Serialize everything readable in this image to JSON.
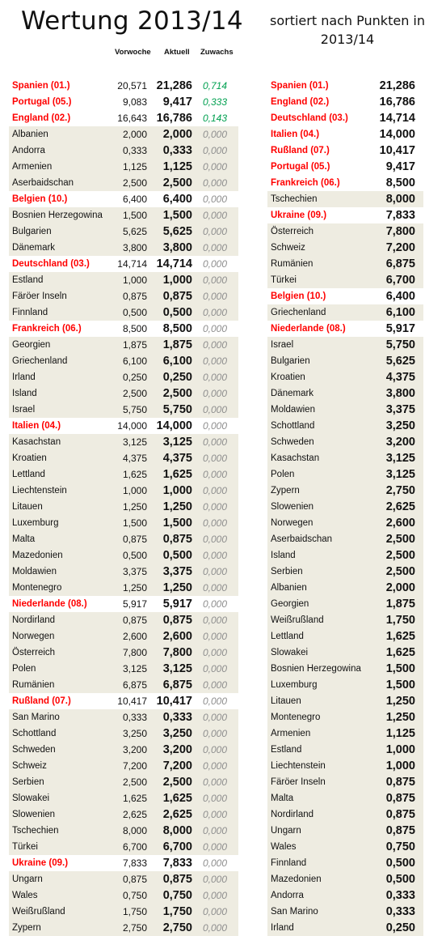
{
  "title": "Wertung 2013/14",
  "subtitle": "sortiert nach Punkten in 2013/14",
  "headers": {
    "prev": "Vorwoche",
    "curr": "Aktuell",
    "grow": "Zuwachs"
  },
  "left_rows": [
    {
      "name": "Spanien (01.)",
      "prev": "20,571",
      "curr": "21,286",
      "grow": "0,714",
      "hl": true,
      "pos": true
    },
    {
      "name": "Portugal (05.)",
      "prev": "9,083",
      "curr": "9,417",
      "grow": "0,333",
      "hl": true,
      "pos": true
    },
    {
      "name": "England (02.)",
      "prev": "16,643",
      "curr": "16,786",
      "grow": "0,143",
      "hl": true,
      "pos": true
    },
    {
      "name": "Albanien",
      "prev": "2,000",
      "curr": "2,000",
      "grow": "0,000"
    },
    {
      "name": "Andorra",
      "prev": "0,333",
      "curr": "0,333",
      "grow": "0,000"
    },
    {
      "name": "Armenien",
      "prev": "1,125",
      "curr": "1,125",
      "grow": "0,000"
    },
    {
      "name": "Aserbaidschan",
      "prev": "2,500",
      "curr": "2,500",
      "grow": "0,000"
    },
    {
      "name": "Belgien (10.)",
      "prev": "6,400",
      "curr": "6,400",
      "grow": "0,000",
      "hl": true
    },
    {
      "name": "Bosnien Herzegowina",
      "prev": "1,500",
      "curr": "1,500",
      "grow": "0,000"
    },
    {
      "name": "Bulgarien",
      "prev": "5,625",
      "curr": "5,625",
      "grow": "0,000"
    },
    {
      "name": "Dänemark",
      "prev": "3,800",
      "curr": "3,800",
      "grow": "0,000"
    },
    {
      "name": "Deutschland (03.)",
      "prev": "14,714",
      "curr": "14,714",
      "grow": "0,000",
      "hl": true
    },
    {
      "name": "Estland",
      "prev": "1,000",
      "curr": "1,000",
      "grow": "0,000"
    },
    {
      "name": "Färöer Inseln",
      "prev": "0,875",
      "curr": "0,875",
      "grow": "0,000"
    },
    {
      "name": "Finnland",
      "prev": "0,500",
      "curr": "0,500",
      "grow": "0,000"
    },
    {
      "name": "Frankreich (06.)",
      "prev": "8,500",
      "curr": "8,500",
      "grow": "0,000",
      "hl": true
    },
    {
      "name": "Georgien",
      "prev": "1,875",
      "curr": "1,875",
      "grow": "0,000"
    },
    {
      "name": "Griechenland",
      "prev": "6,100",
      "curr": "6,100",
      "grow": "0,000"
    },
    {
      "name": "Irland",
      "prev": "0,250",
      "curr": "0,250",
      "grow": "0,000"
    },
    {
      "name": "Island",
      "prev": "2,500",
      "curr": "2,500",
      "grow": "0,000"
    },
    {
      "name": "Israel",
      "prev": "5,750",
      "curr": "5,750",
      "grow": "0,000"
    },
    {
      "name": "Italien (04.)",
      "prev": "14,000",
      "curr": "14,000",
      "grow": "0,000",
      "hl": true
    },
    {
      "name": "Kasachstan",
      "prev": "3,125",
      "curr": "3,125",
      "grow": "0,000"
    },
    {
      "name": "Kroatien",
      "prev": "4,375",
      "curr": "4,375",
      "grow": "0,000"
    },
    {
      "name": "Lettland",
      "prev": "1,625",
      "curr": "1,625",
      "grow": "0,000"
    },
    {
      "name": "Liechtenstein",
      "prev": "1,000",
      "curr": "1,000",
      "grow": "0,000"
    },
    {
      "name": "Litauen",
      "prev": "1,250",
      "curr": "1,250",
      "grow": "0,000"
    },
    {
      "name": "Luxemburg",
      "prev": "1,500",
      "curr": "1,500",
      "grow": "0,000"
    },
    {
      "name": "Malta",
      "prev": "0,875",
      "curr": "0,875",
      "grow": "0,000"
    },
    {
      "name": "Mazedonien",
      "prev": "0,500",
      "curr": "0,500",
      "grow": "0,000"
    },
    {
      "name": "Moldawien",
      "prev": "3,375",
      "curr": "3,375",
      "grow": "0,000"
    },
    {
      "name": "Montenegro",
      "prev": "1,250",
      "curr": "1,250",
      "grow": "0,000"
    },
    {
      "name": "Niederlande (08.)",
      "prev": "5,917",
      "curr": "5,917",
      "grow": "0,000",
      "hl": true
    },
    {
      "name": "Nordirland",
      "prev": "0,875",
      "curr": "0,875",
      "grow": "0,000"
    },
    {
      "name": "Norwegen",
      "prev": "2,600",
      "curr": "2,600",
      "grow": "0,000"
    },
    {
      "name": "Österreich",
      "prev": "7,800",
      "curr": "7,800",
      "grow": "0,000"
    },
    {
      "name": "Polen",
      "prev": "3,125",
      "curr": "3,125",
      "grow": "0,000"
    },
    {
      "name": "Rumänien",
      "prev": "6,875",
      "curr": "6,875",
      "grow": "0,000"
    },
    {
      "name": "Rußland (07.)",
      "prev": "10,417",
      "curr": "10,417",
      "grow": "0,000",
      "hl": true
    },
    {
      "name": "San Marino",
      "prev": "0,333",
      "curr": "0,333",
      "grow": "0,000"
    },
    {
      "name": "Schottland",
      "prev": "3,250",
      "curr": "3,250",
      "grow": "0,000"
    },
    {
      "name": "Schweden",
      "prev": "3,200",
      "curr": "3,200",
      "grow": "0,000"
    },
    {
      "name": "Schweiz",
      "prev": "7,200",
      "curr": "7,200",
      "grow": "0,000"
    },
    {
      "name": "Serbien",
      "prev": "2,500",
      "curr": "2,500",
      "grow": "0,000"
    },
    {
      "name": "Slowakei",
      "prev": "1,625",
      "curr": "1,625",
      "grow": "0,000"
    },
    {
      "name": "Slowenien",
      "prev": "2,625",
      "curr": "2,625",
      "grow": "0,000"
    },
    {
      "name": "Tschechien",
      "prev": "8,000",
      "curr": "8,000",
      "grow": "0,000"
    },
    {
      "name": "Türkei",
      "prev": "6,700",
      "curr": "6,700",
      "grow": "0,000"
    },
    {
      "name": "Ukraine (09.)",
      "prev": "7,833",
      "curr": "7,833",
      "grow": "0,000",
      "hl": true
    },
    {
      "name": "Ungarn",
      "prev": "0,875",
      "curr": "0,875",
      "grow": "0,000"
    },
    {
      "name": "Wales",
      "prev": "0,750",
      "curr": "0,750",
      "grow": "0,000"
    },
    {
      "name": "Weißrußland",
      "prev": "1,750",
      "curr": "1,750",
      "grow": "0,000"
    },
    {
      "name": "Zypern",
      "prev": "2,750",
      "curr": "2,750",
      "grow": "0,000"
    }
  ],
  "right_rows": [
    {
      "name": "Spanien (01.)",
      "curr": "21,286",
      "hl": true
    },
    {
      "name": "England (02.)",
      "curr": "16,786",
      "hl": true
    },
    {
      "name": "Deutschland (03.)",
      "curr": "14,714",
      "hl": true
    },
    {
      "name": "Italien (04.)",
      "curr": "14,000",
      "hl": true
    },
    {
      "name": "Rußland (07.)",
      "curr": "10,417",
      "hl": true
    },
    {
      "name": "Portugal (05.)",
      "curr": "9,417",
      "hl": true
    },
    {
      "name": "Frankreich (06.)",
      "curr": "8,500",
      "hl": true
    },
    {
      "name": "Tschechien",
      "curr": "8,000"
    },
    {
      "name": "Ukraine (09.)",
      "curr": "7,833",
      "hl": true
    },
    {
      "name": "Österreich",
      "curr": "7,800"
    },
    {
      "name": "Schweiz",
      "curr": "7,200"
    },
    {
      "name": "Rumänien",
      "curr": "6,875"
    },
    {
      "name": "Türkei",
      "curr": "6,700"
    },
    {
      "name": "Belgien (10.)",
      "curr": "6,400",
      "hl": true
    },
    {
      "name": "Griechenland",
      "curr": "6,100"
    },
    {
      "name": "Niederlande (08.)",
      "curr": "5,917",
      "hl": true
    },
    {
      "name": "Israel",
      "curr": "5,750"
    },
    {
      "name": "Bulgarien",
      "curr": "5,625"
    },
    {
      "name": "Kroatien",
      "curr": "4,375"
    },
    {
      "name": "Dänemark",
      "curr": "3,800"
    },
    {
      "name": "Moldawien",
      "curr": "3,375"
    },
    {
      "name": "Schottland",
      "curr": "3,250"
    },
    {
      "name": "Schweden",
      "curr": "3,200"
    },
    {
      "name": "Kasachstan",
      "curr": "3,125"
    },
    {
      "name": "Polen",
      "curr": "3,125"
    },
    {
      "name": "Zypern",
      "curr": "2,750"
    },
    {
      "name": "Slowenien",
      "curr": "2,625"
    },
    {
      "name": "Norwegen",
      "curr": "2,600"
    },
    {
      "name": "Aserbaidschan",
      "curr": "2,500"
    },
    {
      "name": "Island",
      "curr": "2,500"
    },
    {
      "name": "Serbien",
      "curr": "2,500"
    },
    {
      "name": "Albanien",
      "curr": "2,000"
    },
    {
      "name": "Georgien",
      "curr": "1,875"
    },
    {
      "name": "Weißrußland",
      "curr": "1,750"
    },
    {
      "name": "Lettland",
      "curr": "1,625"
    },
    {
      "name": "Slowakei",
      "curr": "1,625"
    },
    {
      "name": "Bosnien Herzegowina",
      "curr": "1,500"
    },
    {
      "name": "Luxemburg",
      "curr": "1,500"
    },
    {
      "name": "Litauen",
      "curr": "1,250"
    },
    {
      "name": "Montenegro",
      "curr": "1,250"
    },
    {
      "name": "Armenien",
      "curr": "1,125"
    },
    {
      "name": "Estland",
      "curr": "1,000"
    },
    {
      "name": "Liechtenstein",
      "curr": "1,000"
    },
    {
      "name": "Färöer Inseln",
      "curr": "0,875"
    },
    {
      "name": "Malta",
      "curr": "0,875"
    },
    {
      "name": "Nordirland",
      "curr": "0,875"
    },
    {
      "name": "Ungarn",
      "curr": "0,875"
    },
    {
      "name": "Wales",
      "curr": "0,750"
    },
    {
      "name": "Finnland",
      "curr": "0,500"
    },
    {
      "name": "Mazedonien",
      "curr": "0,500"
    },
    {
      "name": "Andorra",
      "curr": "0,333"
    },
    {
      "name": "San Marino",
      "curr": "0,333"
    },
    {
      "name": "Irland",
      "curr": "0,250"
    }
  ]
}
